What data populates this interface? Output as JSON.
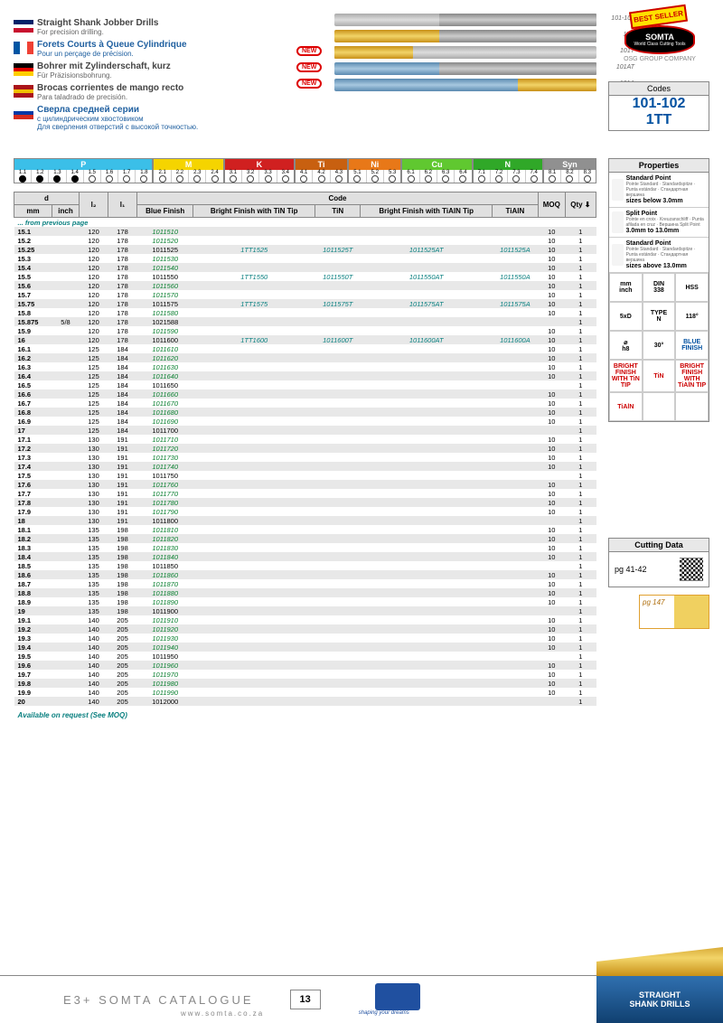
{
  "titles": [
    {
      "flag": "en",
      "main": "Straight Shank Jobber Drills",
      "sub": "For precision drilling.",
      "cls": ""
    },
    {
      "flag": "fr",
      "main": "Forets Courts à Queue Cylindrique",
      "sub": "Pour un perçage de précision.",
      "cls": "blue-t"
    },
    {
      "flag": "de",
      "main": "Bohrer mit Zylinderschaft, kurz",
      "sub": "Für Präzisionsbohrung.",
      "cls": ""
    },
    {
      "flag": "es",
      "main": "Brocas corrientes de mango recto",
      "sub": "Para taladrado de precisión.",
      "cls": ""
    },
    {
      "flag": "ru",
      "main": "Сверла средней серии",
      "sub": "с цилиндрическим хвостовиком\nДля сверления отверстий с высокой точностью.",
      "cls": "blue-t"
    }
  ],
  "drill_labels": [
    "101-102",
    "1TT",
    "101T",
    "101AT",
    "101A"
  ],
  "best": "BEST SELLER",
  "logo": "SOMTA",
  "logo_sub": "World Class Cutting Tools",
  "osg": "OSG GROUP COMPANY",
  "codes_h": "Codes",
  "codes_v": "101-102\n1TT",
  "props_h": "Properties",
  "props": [
    {
      "t": "Standard Point",
      "s": "Pointe Standard · Standardspitze · Punta estándar · Стандартная вершина",
      "n": "sizes below 3.0mm"
    },
    {
      "t": "Split Point",
      "s": "Pointe en croix · Kreuzanschliff · Punta afilada en cruz · Вершина Split Point",
      "n": "3.0mm to 13.0mm"
    },
    {
      "t": "Standard Point",
      "s": "Pointe Standard · Standardspitze · Punta estándar · Стандартная вершина",
      "n": "sizes above 13.0mm"
    }
  ],
  "prop_grid": [
    [
      "mm\ninch",
      "DIN\n338",
      "HSS"
    ],
    [
      "5xD",
      "TYPE\nN",
      "118°"
    ],
    [
      "⌀\nh8",
      "30°",
      "BLUE\nFINISH"
    ],
    [
      "BRIGHT FINISH WITH TiN TIP",
      "TiN",
      "BRIGHT FINISH WITH TiAlN TIP"
    ],
    [
      "TiAlN",
      "",
      ""
    ]
  ],
  "prop_grid_cls": [
    [
      "",
      "",
      ""
    ],
    [
      "",
      "",
      ""
    ],
    [
      "",
      "",
      "blue"
    ],
    [
      "red",
      "red",
      "red"
    ],
    [
      "red",
      "",
      ""
    ]
  ],
  "cutdata_h": "Cutting Data",
  "cutdata_pg": "pg 41-42",
  "pg147": "pg 147",
  "categories": [
    {
      "l": "P",
      "c": "#3bbfe8",
      "cells": [
        "1.1",
        "1.2",
        "1.3",
        "1.4",
        "1.5",
        "1.6",
        "1.7",
        "1.8"
      ],
      "dots": [
        1,
        1,
        1,
        1,
        0,
        0,
        0,
        0
      ]
    },
    {
      "l": "M",
      "c": "#f5d400",
      "cells": [
        "2.1",
        "2.2",
        "2.3",
        "2.4"
      ],
      "dots": [
        0,
        0,
        0,
        0
      ]
    },
    {
      "l": "K",
      "c": "#d02020",
      "cells": [
        "3.1",
        "3.2",
        "3.3",
        "3.4"
      ],
      "dots": [
        0,
        0,
        0,
        0
      ]
    },
    {
      "l": "Ti",
      "c": "#c86010",
      "cells": [
        "4.1",
        "4.2",
        "4.3"
      ],
      "dots": [
        0,
        0,
        0
      ]
    },
    {
      "l": "Ni",
      "c": "#e87818",
      "cells": [
        "5.1",
        "5.2",
        "5.3"
      ],
      "dots": [
        0,
        0,
        0
      ]
    },
    {
      "l": "Cu",
      "c": "#60c830",
      "cells": [
        "6.1",
        "6.2",
        "6.3",
        "6.4"
      ],
      "dots": [
        0,
        0,
        0,
        0
      ]
    },
    {
      "l": "N",
      "c": "#30a828",
      "cells": [
        "7.1",
        "7.2",
        "7.3",
        "7.4"
      ],
      "dots": [
        0,
        0,
        0,
        0
      ]
    },
    {
      "l": "Syn",
      "c": "#909090",
      "cells": [
        "8.1",
        "8.2",
        "8.3"
      ],
      "dots": [
        0,
        0,
        0
      ]
    }
  ],
  "th": {
    "d": "d",
    "mm": "mm",
    "inch": "inch",
    "l2": "l₂",
    "l1": "l₁",
    "code": "Code",
    "bf": "Blue Finish",
    "bft": "Bright Finish with TiN Tip",
    "tin": "TiN",
    "bfa": "Bright Finish with TiAlN Tip",
    "tialn": "TiAlN",
    "moq": "MOQ",
    "qty": "Qty ⬇"
  },
  "prev": "... from previous page",
  "avail": "Available on request (See MOQ)",
  "rows": [
    [
      "15.1",
      "",
      "120",
      "178",
      "1011510",
      "",
      "",
      "",
      "",
      "10",
      "1",
      "g"
    ],
    [
      "15.2",
      "",
      "120",
      "178",
      "1011520",
      "",
      "",
      "",
      "",
      "10",
      "1",
      "g"
    ],
    [
      "15.25",
      "",
      "120",
      "178",
      "1011525",
      "1TT1525",
      "1011525T",
      "1011525AT",
      "1011525A",
      "10",
      "1",
      "t"
    ],
    [
      "15.3",
      "",
      "120",
      "178",
      "1011530",
      "",
      "",
      "",
      "",
      "10",
      "1",
      "g"
    ],
    [
      "15.4",
      "",
      "120",
      "178",
      "1011540",
      "",
      "",
      "",
      "",
      "10",
      "1",
      "g"
    ],
    [
      "15.5",
      "",
      "120",
      "178",
      "1011550",
      "1TT1550",
      "1011550T",
      "1011550AT",
      "1011550A",
      "10",
      "1",
      ""
    ],
    [
      "15.6",
      "",
      "120",
      "178",
      "1011560",
      "",
      "",
      "",
      "",
      "10",
      "1",
      "g"
    ],
    [
      "15.7",
      "",
      "120",
      "178",
      "1011570",
      "",
      "",
      "",
      "",
      "10",
      "1",
      "g"
    ],
    [
      "15.75",
      "",
      "120",
      "178",
      "1011575",
      "1TT1575",
      "1011575T",
      "1011575AT",
      "1011575A",
      "10",
      "1",
      "t"
    ],
    [
      "15.8",
      "",
      "120",
      "178",
      "1011580",
      "",
      "",
      "",
      "",
      "10",
      "1",
      "g"
    ],
    [
      "15.875",
      "5/8",
      "120",
      "178",
      "1021588",
      "",
      "",
      "",
      "",
      "",
      "1",
      ""
    ],
    [
      "15.9",
      "",
      "120",
      "178",
      "1011590",
      "",
      "",
      "",
      "",
      "10",
      "1",
      "g"
    ],
    [
      "16",
      "",
      "120",
      "178",
      "1011600",
      "1TT1600",
      "1011600T",
      "1011600AT",
      "1011600A",
      "10",
      "1",
      ""
    ],
    [
      "16.1",
      "",
      "125",
      "184",
      "1011610",
      "",
      "",
      "",
      "",
      "10",
      "1",
      "g"
    ],
    [
      "16.2",
      "",
      "125",
      "184",
      "1011620",
      "",
      "",
      "",
      "",
      "10",
      "1",
      "g"
    ],
    [
      "16.3",
      "",
      "125",
      "184",
      "1011630",
      "",
      "",
      "",
      "",
      "10",
      "1",
      "g"
    ],
    [
      "16.4",
      "",
      "125",
      "184",
      "1011640",
      "",
      "",
      "",
      "",
      "10",
      "1",
      "g"
    ],
    [
      "16.5",
      "",
      "125",
      "184",
      "1011650",
      "",
      "",
      "",
      "",
      "",
      "1",
      ""
    ],
    [
      "16.6",
      "",
      "125",
      "184",
      "1011660",
      "",
      "",
      "",
      "",
      "10",
      "1",
      "g"
    ],
    [
      "16.7",
      "",
      "125",
      "184",
      "1011670",
      "",
      "",
      "",
      "",
      "10",
      "1",
      "g"
    ],
    [
      "16.8",
      "",
      "125",
      "184",
      "1011680",
      "",
      "",
      "",
      "",
      "10",
      "1",
      "g"
    ],
    [
      "16.9",
      "",
      "125",
      "184",
      "1011690",
      "",
      "",
      "",
      "",
      "10",
      "1",
      "g"
    ],
    [
      "17",
      "",
      "125",
      "184",
      "1011700",
      "",
      "",
      "",
      "",
      "",
      "1",
      ""
    ],
    [
      "17.1",
      "",
      "130",
      "191",
      "1011710",
      "",
      "",
      "",
      "",
      "10",
      "1",
      "g"
    ],
    [
      "17.2",
      "",
      "130",
      "191",
      "1011720",
      "",
      "",
      "",
      "",
      "10",
      "1",
      "g"
    ],
    [
      "17.3",
      "",
      "130",
      "191",
      "1011730",
      "",
      "",
      "",
      "",
      "10",
      "1",
      "g"
    ],
    [
      "17.4",
      "",
      "130",
      "191",
      "1011740",
      "",
      "",
      "",
      "",
      "10",
      "1",
      "g"
    ],
    [
      "17.5",
      "",
      "130",
      "191",
      "1011750",
      "",
      "",
      "",
      "",
      "",
      "1",
      ""
    ],
    [
      "17.6",
      "",
      "130",
      "191",
      "1011760",
      "",
      "",
      "",
      "",
      "10",
      "1",
      "g"
    ],
    [
      "17.7",
      "",
      "130",
      "191",
      "1011770",
      "",
      "",
      "",
      "",
      "10",
      "1",
      "g"
    ],
    [
      "17.8",
      "",
      "130",
      "191",
      "1011780",
      "",
      "",
      "",
      "",
      "10",
      "1",
      "g"
    ],
    [
      "17.9",
      "",
      "130",
      "191",
      "1011790",
      "",
      "",
      "",
      "",
      "10",
      "1",
      "g"
    ],
    [
      "18",
      "",
      "130",
      "191",
      "1011800",
      "",
      "",
      "",
      "",
      "",
      "1",
      ""
    ],
    [
      "18.1",
      "",
      "135",
      "198",
      "1011810",
      "",
      "",
      "",
      "",
      "10",
      "1",
      "g"
    ],
    [
      "18.2",
      "",
      "135",
      "198",
      "1011820",
      "",
      "",
      "",
      "",
      "10",
      "1",
      "g"
    ],
    [
      "18.3",
      "",
      "135",
      "198",
      "1011830",
      "",
      "",
      "",
      "",
      "10",
      "1",
      "g"
    ],
    [
      "18.4",
      "",
      "135",
      "198",
      "1011840",
      "",
      "",
      "",
      "",
      "10",
      "1",
      "g"
    ],
    [
      "18.5",
      "",
      "135",
      "198",
      "1011850",
      "",
      "",
      "",
      "",
      "",
      "1",
      ""
    ],
    [
      "18.6",
      "",
      "135",
      "198",
      "1011860",
      "",
      "",
      "",
      "",
      "10",
      "1",
      "g"
    ],
    [
      "18.7",
      "",
      "135",
      "198",
      "1011870",
      "",
      "",
      "",
      "",
      "10",
      "1",
      "g"
    ],
    [
      "18.8",
      "",
      "135",
      "198",
      "1011880",
      "",
      "",
      "",
      "",
      "10",
      "1",
      "g"
    ],
    [
      "18.9",
      "",
      "135",
      "198",
      "1011890",
      "",
      "",
      "",
      "",
      "10",
      "1",
      "g"
    ],
    [
      "19",
      "",
      "135",
      "198",
      "1011900",
      "",
      "",
      "",
      "",
      "",
      "1",
      ""
    ],
    [
      "19.1",
      "",
      "140",
      "205",
      "1011910",
      "",
      "",
      "",
      "",
      "10",
      "1",
      "g"
    ],
    [
      "19.2",
      "",
      "140",
      "205",
      "1011920",
      "",
      "",
      "",
      "",
      "10",
      "1",
      "g"
    ],
    [
      "19.3",
      "",
      "140",
      "205",
      "1011930",
      "",
      "",
      "",
      "",
      "10",
      "1",
      "g"
    ],
    [
      "19.4",
      "",
      "140",
      "205",
      "1011940",
      "",
      "",
      "",
      "",
      "10",
      "1",
      "g"
    ],
    [
      "19.5",
      "",
      "140",
      "205",
      "1011950",
      "",
      "",
      "",
      "",
      "",
      "1",
      ""
    ],
    [
      "19.6",
      "",
      "140",
      "205",
      "1011960",
      "",
      "",
      "",
      "",
      "10",
      "1",
      "g"
    ],
    [
      "19.7",
      "",
      "140",
      "205",
      "1011970",
      "",
      "",
      "",
      "",
      "10",
      "1",
      "g"
    ],
    [
      "19.8",
      "",
      "140",
      "205",
      "1011980",
      "",
      "",
      "",
      "",
      "10",
      "1",
      "g"
    ],
    [
      "19.9",
      "",
      "140",
      "205",
      "1011990",
      "",
      "",
      "",
      "",
      "10",
      "1",
      "g"
    ],
    [
      "20",
      "",
      "140",
      "205",
      "1012000",
      "",
      "",
      "",
      "",
      "",
      "1",
      ""
    ]
  ],
  "footer": {
    "cat": "E3+ SOMTA CATALOGUE",
    "www": "www.somta.co.za",
    "pg": "13",
    "osg": "shaping your dreams",
    "drills": "STRAIGHT\nSHANK DRILLS"
  }
}
